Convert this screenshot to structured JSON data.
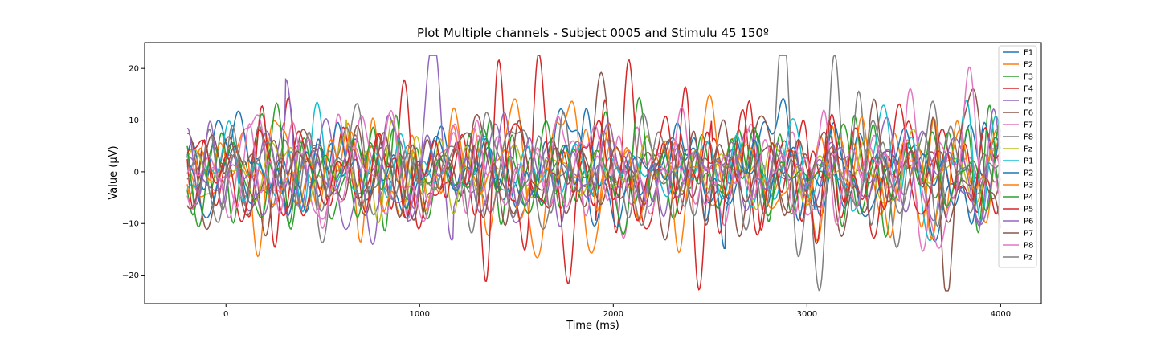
{
  "chart_data": {
    "type": "line",
    "title": "Plot Multiple channels - Subject 0005 and Stimulu 45 150º",
    "xlabel": "Time (ms)",
    "ylabel": "Value (µV)",
    "xlim": [
      -420,
      4210
    ],
    "ylim": [
      -25.5,
      25
    ],
    "xticks": [
      0,
      1000,
      2000,
      3000,
      4000
    ],
    "yticks": [
      -20,
      -10,
      0,
      10,
      20
    ],
    "x_range": [
      -200,
      4000
    ],
    "legend_position": "top-right",
    "grid": false,
    "series": [
      {
        "name": "F1",
        "color": "#1f77b4",
        "seed": 11,
        "amplitude": 4.6
      },
      {
        "name": "F2",
        "color": "#ff7f0e",
        "seed": 23,
        "amplitude": 5.0
      },
      {
        "name": "F3",
        "color": "#2ca02c",
        "seed": 37,
        "amplitude": 5.1
      },
      {
        "name": "F4",
        "color": "#d62728",
        "seed": 41,
        "amplitude": 5.2
      },
      {
        "name": "F5",
        "color": "#9467bd",
        "seed": 53,
        "amplitude": 4.9
      },
      {
        "name": "F6",
        "color": "#8c564b",
        "seed": 67,
        "amplitude": 5.4
      },
      {
        "name": "F7",
        "color": "#e377c2",
        "seed": 71,
        "amplitude": 5.0
      },
      {
        "name": "F8",
        "color": "#7f7f7f",
        "seed": 83,
        "amplitude": 5.3
      },
      {
        "name": "Fz",
        "color": "#bcbd22",
        "seed": 97,
        "amplitude": 3.6
      },
      {
        "name": "P1",
        "color": "#17becf",
        "seed": 101,
        "amplitude": 4.6
      },
      {
        "name": "P2",
        "color": "#1f77b4",
        "seed": 113,
        "amplitude": 4.2
      },
      {
        "name": "P3",
        "color": "#ff7f0e",
        "seed": 127,
        "amplitude": 4.6
      },
      {
        "name": "P4",
        "color": "#2ca02c",
        "seed": 131,
        "amplitude": 4.3
      },
      {
        "name": "P5",
        "color": "#d62728",
        "seed": 149,
        "amplitude": 5.1
      },
      {
        "name": "P6",
        "color": "#9467bd",
        "seed": 151,
        "amplitude": 4.7
      },
      {
        "name": "P7",
        "color": "#8c564b",
        "seed": 163,
        "amplitude": 5.2
      },
      {
        "name": "P8",
        "color": "#e377c2",
        "seed": 173,
        "amplitude": 4.8
      },
      {
        "name": "Pz",
        "color": "#7f7f7f",
        "seed": 181,
        "amplitude": 5.0
      }
    ]
  }
}
